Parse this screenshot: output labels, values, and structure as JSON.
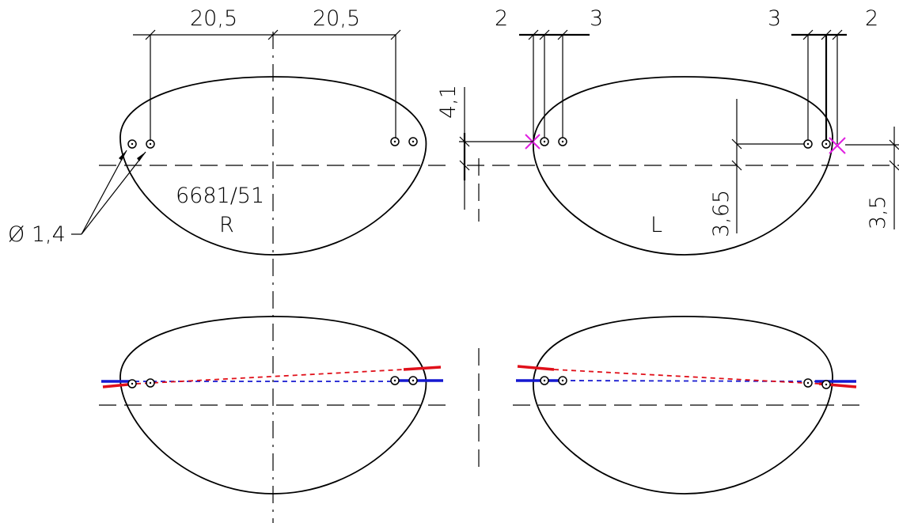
{
  "drawing": {
    "right_lens": {
      "label_code": "6681/51",
      "label_side": "R",
      "dim_left": "20,5",
      "dim_right": "20,5",
      "hole_diameter": "Ø 1,4"
    },
    "left_lens": {
      "label_side": "L",
      "dim_top_left_a": "2",
      "dim_top_left_b": "3",
      "dim_top_right_a": "3",
      "dim_top_right_b": "2",
      "dim_vertical_41": "4,1",
      "dim_vertical_365": "3,65",
      "dim_vertical_35": "3,5"
    },
    "colors": {
      "line": "#000000",
      "red": "#e0101a",
      "blue": "#1518d0",
      "magenta": "#e020e0"
    }
  }
}
